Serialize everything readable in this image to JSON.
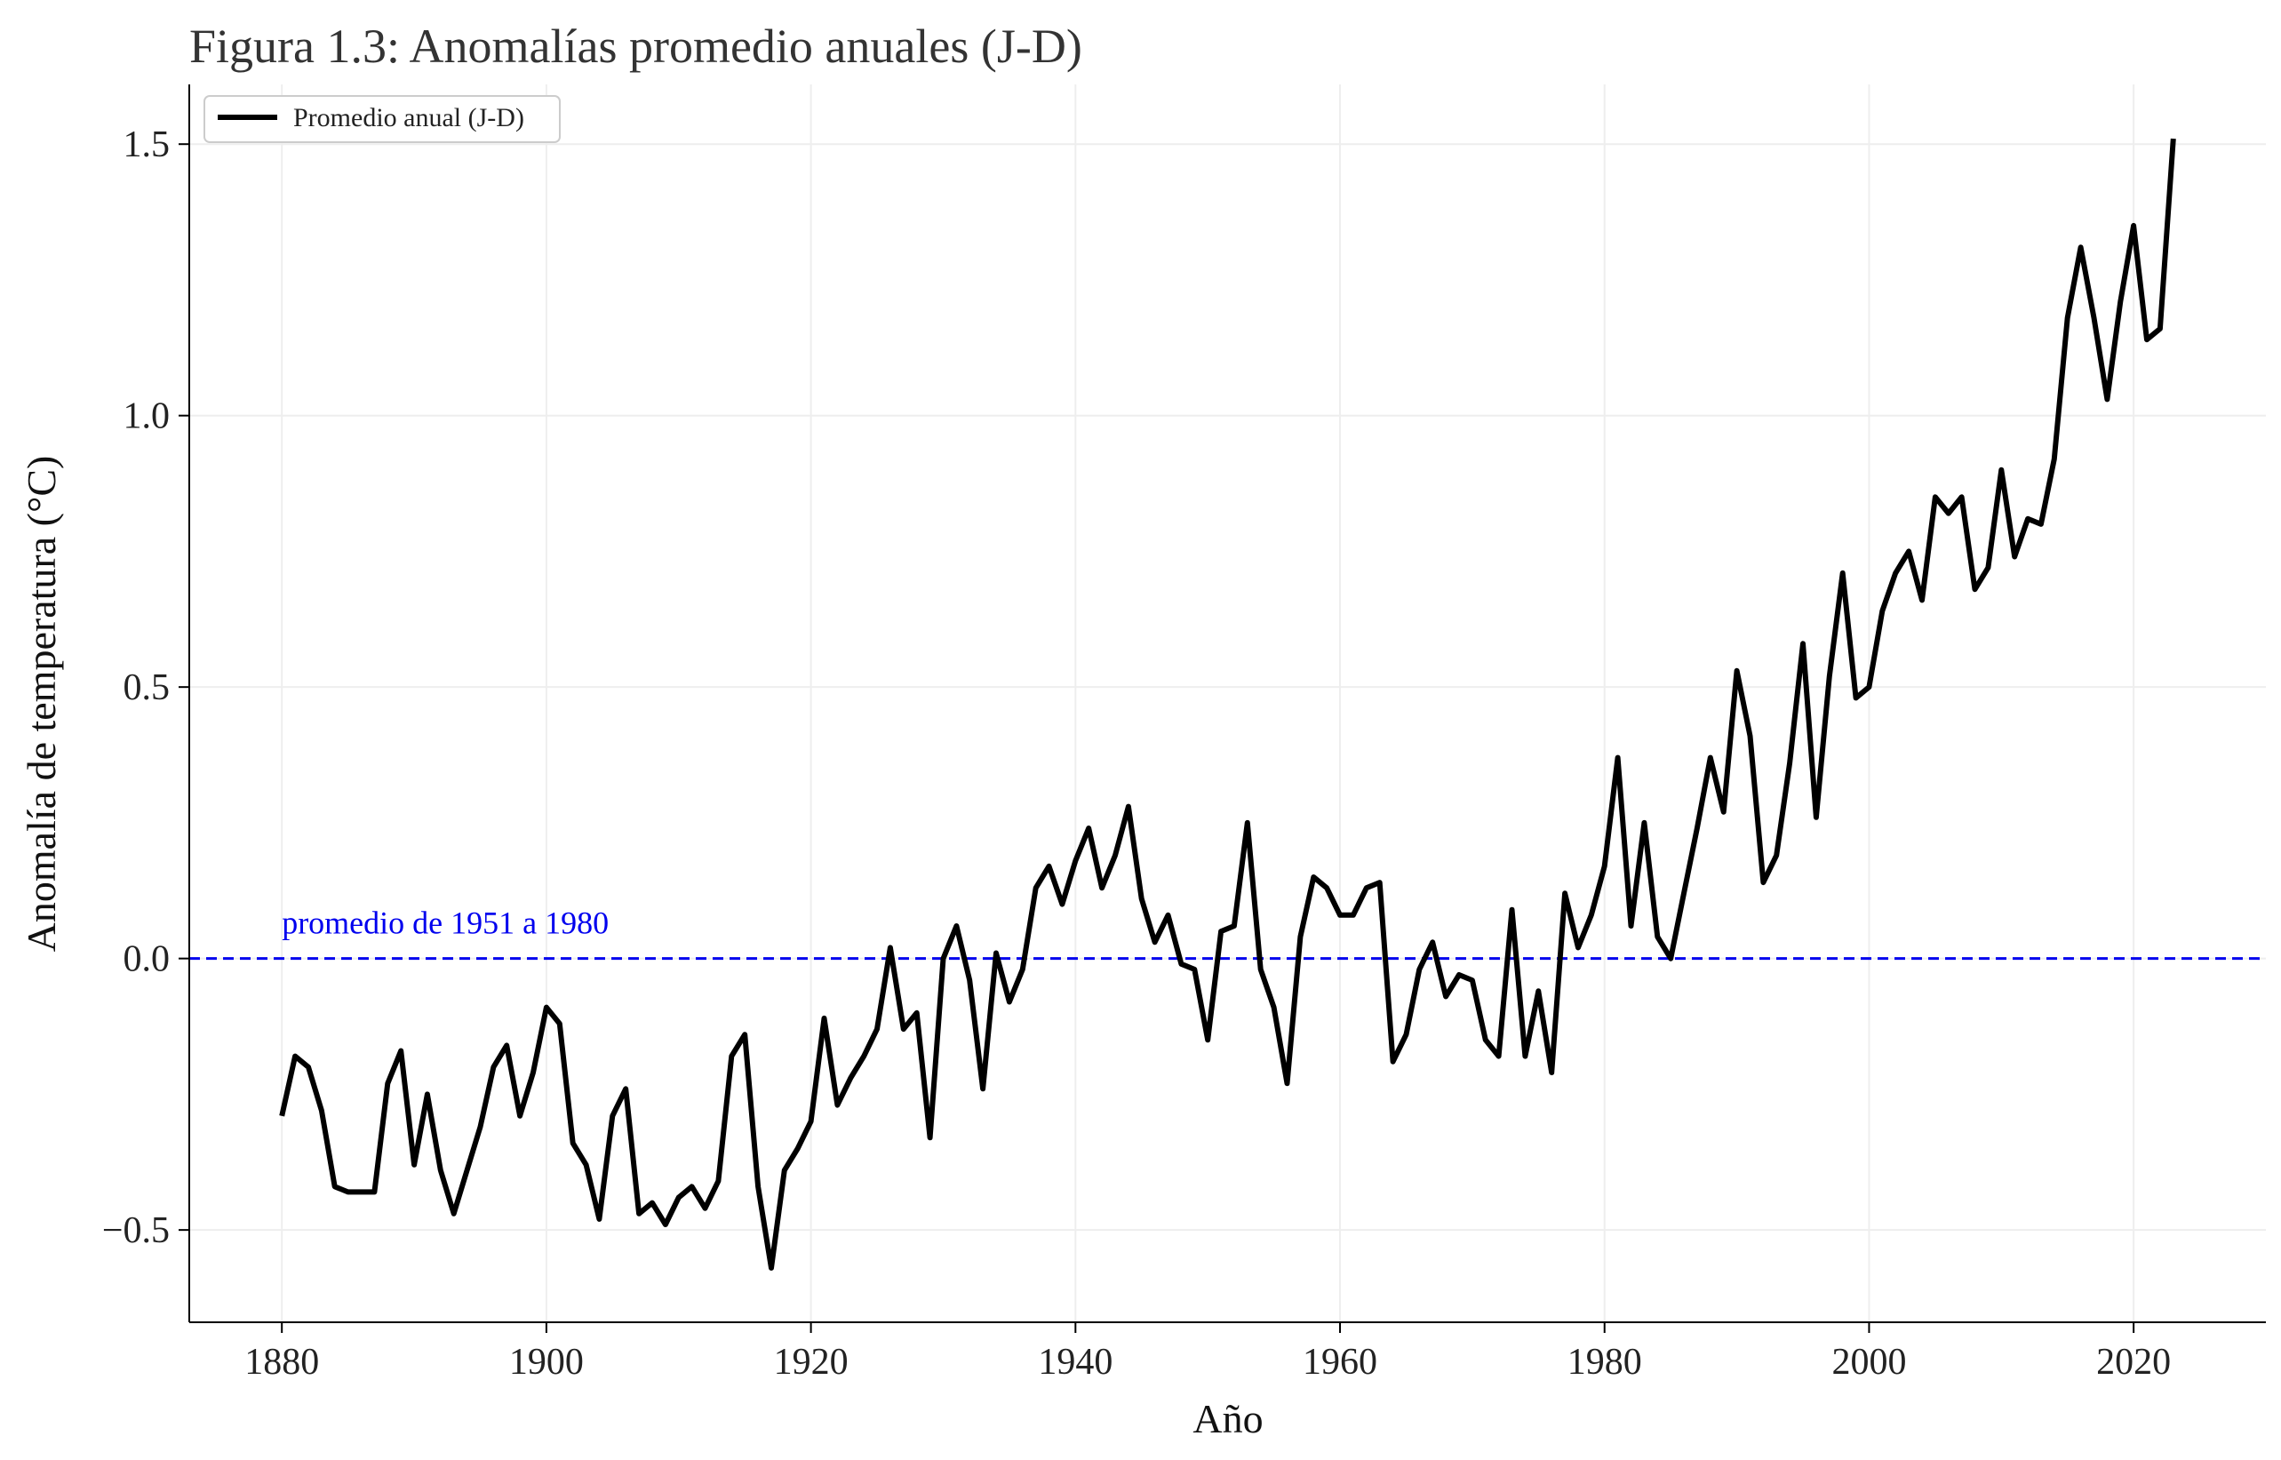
{
  "chart_data": {
    "type": "line",
    "title": "Figura 1.3: Anomalías promedio anuales (J-D)",
    "xlabel": "Año",
    "ylabel": "Anomalía de temperatura (°C)",
    "xlim": [
      1873,
      2030
    ],
    "ylim": [
      -0.67,
      1.61
    ],
    "xticks": [
      1880,
      1900,
      1920,
      1940,
      1960,
      1980,
      2000,
      2020
    ],
    "yticks": [
      -0.5,
      0.0,
      0.5,
      1.0,
      1.5
    ],
    "ytick_labels": [
      "−0.5",
      "0.0",
      "0.5",
      "1.0",
      "1.5"
    ],
    "grid": true,
    "legend_position": "top-left",
    "series": [
      {
        "name": "Promedio anual (J-D)",
        "color": "#000000",
        "x": [
          1880,
          1881,
          1882,
          1883,
          1884,
          1885,
          1886,
          1887,
          1888,
          1889,
          1890,
          1891,
          1892,
          1893,
          1894,
          1895,
          1896,
          1897,
          1898,
          1899,
          1900,
          1901,
          1902,
          1903,
          1904,
          1905,
          1906,
          1907,
          1908,
          1909,
          1910,
          1911,
          1912,
          1913,
          1914,
          1915,
          1916,
          1917,
          1918,
          1919,
          1920,
          1921,
          1922,
          1923,
          1924,
          1925,
          1926,
          1927,
          1928,
          1929,
          1930,
          1931,
          1932,
          1933,
          1934,
          1935,
          1936,
          1937,
          1938,
          1939,
          1940,
          1941,
          1942,
          1943,
          1944,
          1945,
          1946,
          1947,
          1948,
          1949,
          1950,
          1951,
          1952,
          1953,
          1954,
          1955,
          1956,
          1957,
          1958,
          1959,
          1960,
          1961,
          1962,
          1963,
          1964,
          1965,
          1966,
          1967,
          1968,
          1969,
          1970,
          1971,
          1972,
          1973,
          1974,
          1975,
          1976,
          1977,
          1978,
          1979,
          1980,
          1981,
          1982,
          1983,
          1984,
          1985,
          1986,
          1987,
          1988,
          1989,
          1990,
          1991,
          1992,
          1993,
          1994,
          1995,
          1996,
          1997,
          1998,
          1999,
          2000,
          2001,
          2002,
          2003,
          2004,
          2005,
          2006,
          2007,
          2008,
          2009,
          2010,
          2011,
          2012,
          2013,
          2014,
          2015,
          2016,
          2017,
          2018,
          2019,
          2020,
          2021,
          2022,
          2023
        ],
        "values": [
          -0.29,
          -0.18,
          -0.2,
          -0.28,
          -0.42,
          -0.43,
          -0.43,
          -0.43,
          -0.23,
          -0.17,
          -0.38,
          -0.25,
          -0.39,
          -0.47,
          -0.39,
          -0.31,
          -0.2,
          -0.16,
          -0.29,
          -0.21,
          -0.09,
          -0.12,
          -0.34,
          -0.38,
          -0.48,
          -0.29,
          -0.24,
          -0.47,
          -0.45,
          -0.49,
          -0.44,
          -0.42,
          -0.46,
          -0.41,
          -0.18,
          -0.14,
          -0.42,
          -0.57,
          -0.39,
          -0.35,
          -0.3,
          -0.11,
          -0.27,
          -0.22,
          -0.18,
          -0.13,
          0.02,
          -0.13,
          -0.1,
          -0.33,
          0.0,
          0.06,
          -0.04,
          -0.24,
          0.01,
          -0.08,
          -0.02,
          0.13,
          0.17,
          0.1,
          0.18,
          0.24,
          0.13,
          0.19,
          0.28,
          0.11,
          0.03,
          0.08,
          -0.01,
          -0.02,
          -0.15,
          0.05,
          0.06,
          0.25,
          -0.02,
          -0.09,
          -0.23,
          0.04,
          0.15,
          0.13,
          0.08,
          0.08,
          0.13,
          0.14,
          -0.19,
          -0.14,
          -0.02,
          0.03,
          -0.07,
          -0.03,
          -0.04,
          -0.15,
          -0.18,
          0.09,
          -0.18,
          -0.06,
          -0.21,
          0.12,
          0.02,
          0.08,
          0.17,
          0.37,
          0.06,
          0.25,
          0.04,
          0.0,
          0.12,
          0.24,
          0.37,
          0.27,
          0.53,
          0.41,
          0.14,
          0.19,
          0.36,
          0.58,
          0.26,
          0.52,
          0.71,
          0.48,
          0.5,
          0.64,
          0.71,
          0.75,
          0.66,
          0.85,
          0.82,
          0.85,
          0.68,
          0.72,
          0.9,
          0.74,
          0.81,
          0.8,
          0.92,
          1.18,
          1.31,
          1.18,
          1.03,
          1.21,
          1.35,
          1.14,
          1.16,
          1.51
        ]
      }
    ],
    "reference_line": {
      "y": 0.0,
      "label": "promedio de 1951 a 1980",
      "color": "#0000ee",
      "style": "dashed"
    }
  }
}
